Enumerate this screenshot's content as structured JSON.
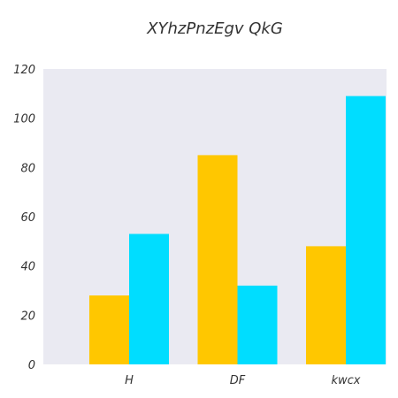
{
  "chart_data": {
    "type": "bar",
    "title": "XYhzPnzEgv QkG",
    "xlabel": "",
    "ylabel": "",
    "categories": [
      "H",
      "DF",
      "kwcx"
    ],
    "series": [
      {
        "values": [
          28,
          85,
          48
        ],
        "color": "#FFC700"
      },
      {
        "values": [
          53,
          32,
          109
        ],
        "color": "#00DDFF"
      }
    ],
    "ylim": [
      0,
      120
    ],
    "yticks": [
      "0",
      "20",
      "40",
      "60",
      "80",
      "100",
      "120"
    ],
    "grid": false,
    "background": "#EAEAF2",
    "legend": "none"
  }
}
